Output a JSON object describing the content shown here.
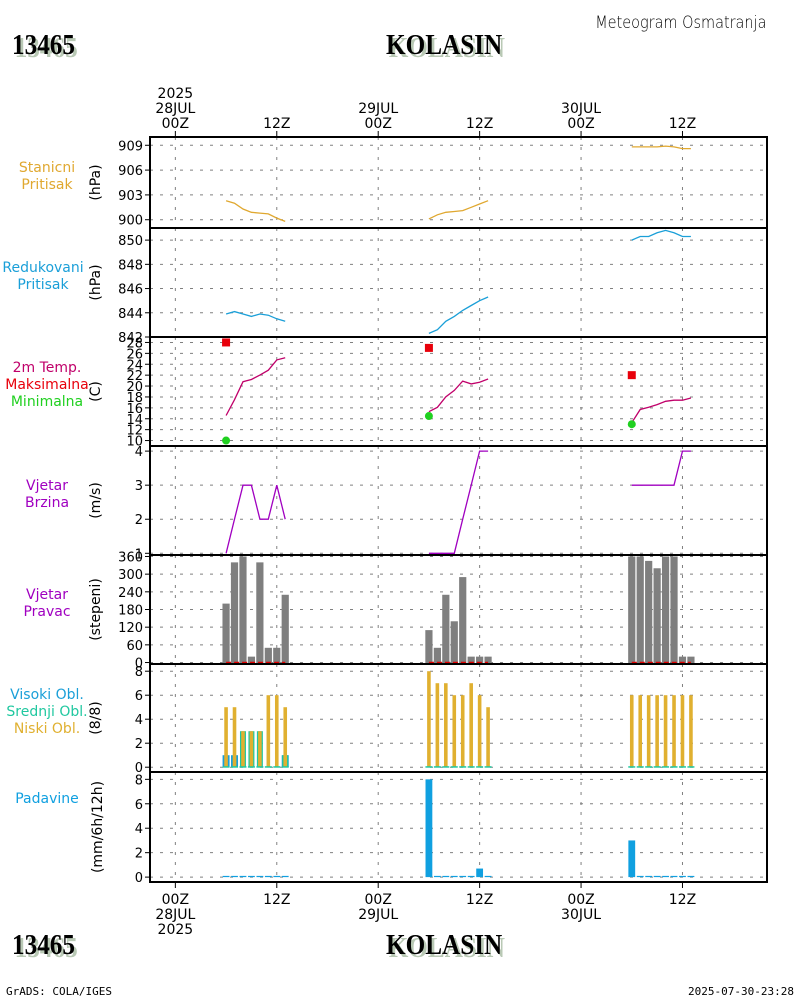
{
  "header": {
    "station_id": "13465",
    "station_name": "KOLASIN",
    "subtitle": "Meteogram Osmatranja"
  },
  "footer": {
    "station_id": "13465",
    "station_name": "KOLASIN",
    "credit": "GrADS: COLA/IGES",
    "timestamp": "2025-07-30-23:28"
  },
  "time_axis": {
    "top_ticks": [
      {
        "hour": 0,
        "lines": [
          "2025",
          "28JUL",
          "00Z"
        ]
      },
      {
        "hour": 12,
        "lines": [
          "12Z"
        ]
      },
      {
        "hour": 24,
        "lines": [
          "29JUL",
          "00Z"
        ]
      },
      {
        "hour": 36,
        "lines": [
          "12Z"
        ]
      },
      {
        "hour": 48,
        "lines": [
          "30JUL",
          "00Z"
        ]
      },
      {
        "hour": 60,
        "lines": [
          "12Z"
        ]
      }
    ],
    "bottom_ticks": [
      {
        "hour": 0,
        "lines": [
          "00Z",
          "28JUL",
          "2025"
        ]
      },
      {
        "hour": 12,
        "lines": [
          "12Z"
        ]
      },
      {
        "hour": 24,
        "lines": [
          "00Z",
          "29JUL"
        ]
      },
      {
        "hour": 36,
        "lines": [
          "12Z"
        ]
      },
      {
        "hour": 48,
        "lines": [
          "00Z",
          "30JUL"
        ]
      },
      {
        "hour": 60,
        "lines": [
          "12Z"
        ]
      }
    ],
    "range_hours": [
      -3,
      70
    ]
  },
  "colors": {
    "station_pressure": "#e0a830",
    "reduced_pressure": "#1a9fd8",
    "temp_line": "#c0006a",
    "tmax": "#e8000b",
    "tmin": "#20d020",
    "wind_speed": "#a000c0",
    "wind_dir_bar": "#7f7f7f",
    "wind_dir_zero": "#e00000",
    "cloud_high": "#1a9fd8",
    "cloud_mid": "#20c8a0",
    "cloud_low": "#e0b030",
    "precip": "#10a0e0",
    "label_temp": "#e8000b",
    "label_wind": "#a000c0"
  },
  "chart_data": [
    {
      "type": "line",
      "id": "station_pressure",
      "title_lines": [
        "Stanicni",
        "Pritisak"
      ],
      "ylabel": "(hPa)",
      "ylim": [
        899,
        910
      ],
      "yticks": [
        900,
        903,
        906,
        909
      ],
      "grid": true,
      "x_hours": [
        6,
        7,
        8,
        9,
        10,
        11,
        12,
        13,
        30,
        31,
        32,
        33,
        34,
        35,
        36,
        37,
        54,
        55,
        56,
        57,
        58,
        59,
        60,
        61
      ],
      "segments": [
        {
          "x": [
            6,
            7,
            8,
            9,
            10,
            11,
            12,
            13
          ],
          "y": [
            902.3,
            902.0,
            901.3,
            900.9,
            900.8,
            900.7,
            900.2,
            899.8
          ]
        },
        {
          "x": [
            30,
            31,
            32,
            33,
            34,
            35,
            36,
            37
          ],
          "y": [
            900.1,
            900.6,
            900.9,
            901.0,
            901.1,
            901.5,
            901.9,
            902.3
          ]
        },
        {
          "x": [
            54,
            55,
            56,
            57,
            58,
            59,
            60,
            61
          ],
          "y": [
            908.8,
            908.8,
            908.8,
            908.8,
            908.9,
            908.8,
            908.6,
            908.6
          ]
        }
      ]
    },
    {
      "type": "line",
      "id": "reduced_pressure",
      "title_lines": [
        "Redukovani",
        "Pritisak"
      ],
      "ylabel": "(hPa)",
      "ylim": [
        842,
        851
      ],
      "yticks": [
        842,
        844,
        846,
        848,
        850
      ],
      "grid": true,
      "segments": [
        {
          "x": [
            6,
            7,
            8,
            9,
            10,
            11,
            12,
            13
          ],
          "y": [
            843.9,
            844.1,
            843.9,
            843.7,
            843.9,
            843.8,
            843.5,
            843.3
          ]
        },
        {
          "x": [
            30,
            31,
            32,
            33,
            34,
            35,
            36,
            37
          ],
          "y": [
            842.3,
            842.6,
            843.3,
            843.7,
            844.2,
            844.6,
            845.0,
            845.3
          ]
        },
        {
          "x": [
            54,
            55,
            56,
            57,
            58,
            59,
            60,
            61
          ],
          "y": [
            850.0,
            850.3,
            850.3,
            850.6,
            850.8,
            850.6,
            850.3,
            850.3
          ]
        }
      ]
    },
    {
      "type": "line",
      "id": "temperature",
      "title_lines": [
        "2m Temp.",
        "Maksimalna",
        "Minimalna"
      ],
      "ylabel": "(C)",
      "ylim": [
        9,
        29
      ],
      "yticks": [
        10,
        12,
        14,
        16,
        18,
        20,
        22,
        24,
        26,
        28
      ],
      "grid": true,
      "segments": [
        {
          "x": [
            6,
            7,
            8,
            9,
            10,
            11,
            12,
            13
          ],
          "y": [
            14.6,
            17.5,
            20.8,
            21.2,
            22.0,
            22.9,
            24.8,
            25.2
          ]
        },
        {
          "x": [
            30,
            31,
            32,
            33,
            34,
            35,
            36,
            37
          ],
          "y": [
            15.3,
            16.1,
            18.0,
            19.2,
            20.9,
            20.4,
            20.7,
            21.3
          ]
        },
        {
          "x": [
            54,
            55,
            56,
            57,
            58,
            59,
            60,
            61
          ],
          "y": [
            13.3,
            15.7,
            16.1,
            16.6,
            17.2,
            17.4,
            17.4,
            17.8
          ]
        }
      ],
      "tmax": [
        {
          "x": 6,
          "y": 28
        },
        {
          "x": 30,
          "y": 27
        },
        {
          "x": 54,
          "y": 22
        }
      ],
      "tmin": [
        {
          "x": 6,
          "y": 10
        },
        {
          "x": 30,
          "y": 14.5
        },
        {
          "x": 54,
          "y": 13
        }
      ]
    },
    {
      "type": "line",
      "id": "wind_speed",
      "title_lines": [
        "Vjetar",
        "Brzina"
      ],
      "ylabel": "(m/s)",
      "ylim": [
        0.95,
        4.15
      ],
      "yticks": [
        1,
        2,
        3,
        4
      ],
      "grid": true,
      "segments": [
        {
          "x": [
            6,
            7,
            8,
            9,
            10,
            11,
            12,
            13
          ],
          "y": [
            1,
            2,
            3,
            3,
            2,
            2,
            3,
            2
          ]
        },
        {
          "x": [
            30,
            31,
            32,
            33,
            34,
            35,
            36,
            37
          ],
          "y": [
            1,
            1,
            1,
            1,
            2,
            3,
            4,
            4
          ]
        },
        {
          "x": [
            54,
            55,
            56,
            57,
            58,
            59,
            60,
            61
          ],
          "y": [
            3,
            3,
            3,
            3,
            3,
            3,
            4,
            4
          ]
        }
      ]
    },
    {
      "type": "bar",
      "id": "wind_direction",
      "title_lines": [
        "Vjetar",
        "Pravac"
      ],
      "ylabel": "(stepeni)",
      "ylim": [
        -5,
        365
      ],
      "yticks": [
        0,
        60,
        120,
        180,
        240,
        300,
        360
      ],
      "grid": true,
      "x": [
        6,
        7,
        8,
        9,
        10,
        11,
        12,
        13,
        30,
        31,
        32,
        33,
        34,
        35,
        36,
        37,
        54,
        55,
        56,
        57,
        58,
        59,
        60,
        61
      ],
      "values": [
        200,
        340,
        360,
        20,
        340,
        50,
        50,
        230,
        110,
        50,
        230,
        140,
        290,
        20,
        20,
        20,
        360,
        360,
        345,
        320,
        360,
        360,
        20,
        20
      ],
      "zero_line_segments": [
        [
          6,
          13
        ],
        [
          30,
          37
        ],
        [
          54,
          61
        ]
      ]
    },
    {
      "type": "bar",
      "id": "clouds",
      "title_lines": [
        "Visoki Obl.",
        "Srednji Obl.",
        "Niski Obl."
      ],
      "ylabel": "(8/8)",
      "ylim": [
        -0.4,
        8.6
      ],
      "yticks": [
        0,
        2,
        4,
        6,
        8
      ],
      "grid": true,
      "x": [
        6,
        7,
        8,
        9,
        10,
        11,
        12,
        13,
        30,
        31,
        32,
        33,
        34,
        35,
        36,
        37,
        54,
        55,
        56,
        57,
        58,
        59,
        60,
        61
      ],
      "series": [
        {
          "name": "Visoki Obl.",
          "values": [
            1,
            1,
            0,
            0,
            0,
            0,
            0,
            1,
            0,
            0,
            0,
            0,
            0,
            0,
            0,
            0,
            0,
            0,
            0,
            0,
            0,
            0,
            0,
            0
          ]
        },
        {
          "name": "Srednji Obl.",
          "values": [
            0,
            0,
            3,
            3,
            3,
            0,
            0,
            1,
            0,
            0,
            0,
            0,
            0,
            0,
            0,
            0,
            0,
            0,
            0,
            0,
            0,
            0,
            0,
            0
          ]
        },
        {
          "name": "Niski Obl.",
          "values": [
            5,
            5,
            3,
            3,
            3,
            6,
            6,
            5,
            8,
            7,
            7,
            6,
            6,
            7,
            6,
            5,
            6,
            6,
            6,
            6,
            6,
            6,
            6,
            6
          ]
        }
      ]
    },
    {
      "type": "bar",
      "id": "precipitation",
      "title_lines": [
        "Padavine"
      ],
      "ylabel": "(mm/6h/12h)",
      "ylim": [
        -0.4,
        8.6
      ],
      "yticks": [
        0,
        2,
        4,
        6,
        8
      ],
      "grid": true,
      "x": [
        6,
        7,
        8,
        9,
        10,
        11,
        12,
        13,
        30,
        31,
        32,
        33,
        34,
        35,
        36,
        37,
        54,
        55,
        56,
        57,
        58,
        59,
        60,
        61
      ],
      "values": [
        0.1,
        0.1,
        0.1,
        0.1,
        0.1,
        0.1,
        0.1,
        0.1,
        8,
        0.1,
        0.1,
        0.1,
        0.1,
        0.1,
        0.7,
        0.1,
        3,
        0.1,
        0.1,
        0.1,
        0.1,
        0.1,
        0.1,
        0.1
      ]
    }
  ]
}
